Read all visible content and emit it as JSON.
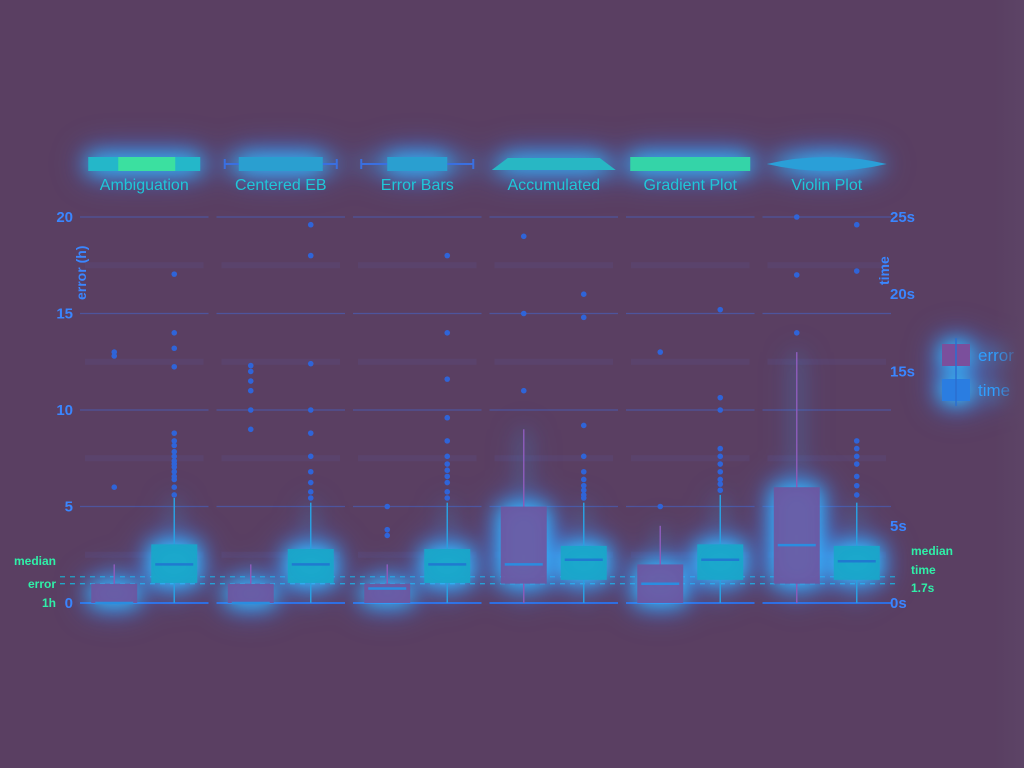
{
  "chart_data": {
    "type": "box",
    "panels": [
      {
        "title": "Ambiguation",
        "icon": "bar-with-inner-bar",
        "error": {
          "q1": 0,
          "median": 0,
          "q3": 1,
          "whisker_high": 2,
          "outliers": [
            6,
            12.8,
            13
          ]
        },
        "time": {
          "q1": 1.3,
          "median": 2.5,
          "q3": 3.8,
          "whisker_high": 6.8,
          "outliers": [
            7,
            7.5,
            8,
            8.2,
            8.5,
            8.8,
            9,
            9.2,
            9.5,
            9.8,
            10.2,
            10.5,
            11,
            15.3,
            16.5,
            17.5,
            21.3
          ]
        }
      },
      {
        "title": "Centered EB",
        "icon": "centered-error-bar",
        "error": {
          "q1": 0,
          "median": 0,
          "q3": 1,
          "whisker_high": 2,
          "outliers": [
            9,
            10,
            11,
            11.5,
            12,
            12.3
          ]
        },
        "time": {
          "q1": 1.3,
          "median": 2.5,
          "q3": 3.5,
          "whisker_high": 6.5,
          "outliers": [
            6.8,
            7.2,
            7.8,
            8.5,
            9.5,
            11,
            12.5,
            15.5,
            22.5,
            24.5
          ]
        }
      },
      {
        "title": "Error Bars",
        "icon": "error-bar",
        "error": {
          "q1": 0,
          "median": 0.75,
          "q3": 1,
          "whisker_high": 2,
          "outliers": [
            3.5,
            3.8,
            5
          ]
        },
        "time": {
          "q1": 1.3,
          "median": 2.5,
          "q3": 3.5,
          "whisker_high": 6.5,
          "outliers": [
            6.8,
            7.2,
            7.8,
            8.2,
            8.6,
            9,
            9.5,
            10.5,
            12,
            14.5,
            17.5,
            22.5
          ]
        }
      },
      {
        "title": "Accumulated",
        "icon": "accumulated-shape",
        "error": {
          "q1": 1,
          "median": 2,
          "q3": 5,
          "whisker_high": 9,
          "outliers": [
            11,
            15,
            19
          ]
        },
        "time": {
          "q1": 1.5,
          "median": 2.8,
          "q3": 3.7,
          "whisker_high": 6.5,
          "outliers": [
            6.8,
            7,
            7.3,
            7.6,
            8,
            8.5,
            9.5,
            11.5,
            18.5,
            20
          ]
        }
      },
      {
        "title": "Gradient Plot",
        "icon": "gradient-bar",
        "error": {
          "q1": 0,
          "median": 1,
          "q3": 2,
          "whisker_high": 4,
          "outliers": [
            5,
            13
          ]
        },
        "time": {
          "q1": 1.5,
          "median": 2.8,
          "q3": 3.8,
          "whisker_high": 7,
          "outliers": [
            7.3,
            7.7,
            8,
            8.5,
            9,
            9.5,
            10,
            12.5,
            13.3,
            19
          ]
        }
      },
      {
        "title": "Violin Plot",
        "icon": "violin-shape",
        "error": {
          "q1": 1,
          "median": 3,
          "q3": 6,
          "whisker_high": 13,
          "outliers": [
            14,
            17,
            20
          ]
        },
        "time": {
          "q1": 1.5,
          "median": 2.7,
          "q3": 3.7,
          "whisker_high": 6.5,
          "outliers": [
            7,
            7.6,
            8.2,
            9,
            9.5,
            10,
            10.5,
            21.5,
            24.5
          ]
        }
      }
    ],
    "left_axis": {
      "title": "error (h)",
      "ticks": [
        "0",
        "5",
        "10",
        "15",
        "20"
      ],
      "range": [
        0,
        20
      ]
    },
    "right_axis": {
      "title": "time",
      "ticks": [
        "0s",
        "5s",
        "15s",
        "20s",
        "25s"
      ],
      "range": [
        0,
        25
      ]
    },
    "legend": {
      "position": "right",
      "entries": [
        {
          "label": "error",
          "color": "#7b4f9c"
        },
        {
          "label": "time",
          "color": "#2a7de1"
        }
      ]
    },
    "reference_lines": {
      "median_error": {
        "label_lines": [
          "median",
          "error",
          "1h"
        ],
        "value": 1
      },
      "median_time": {
        "label_lines": [
          "median",
          "time",
          "1.7s"
        ],
        "value": 1.7
      }
    }
  },
  "colors": {
    "background": "#5a3f62",
    "error_box": "#6f55a0",
    "time_box": "#1aa6c9",
    "halo": "#2fd0ff",
    "text_blue": "#3a86ff",
    "text_cyan": "#1fc7d9",
    "label_green": "#2ff0a8"
  }
}
